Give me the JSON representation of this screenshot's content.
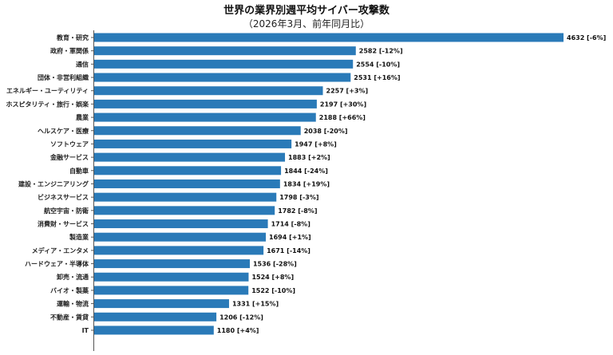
{
  "chart_data": {
    "type": "bar",
    "orientation": "horizontal",
    "title": "世界の業界別週平均サイバー攻撃数",
    "subtitle": "（2026年3月、前年同月比）",
    "categories": [
      "教育・研究",
      "政府・軍関係",
      "通信",
      "団体・非営利組織",
      "エネルギー・ユーティリティ",
      "ホスピタリティ・旅行・娯楽",
      "農業",
      "ヘルスケア・医療",
      "ソフトウェア",
      "金融サービス",
      "自動車",
      "建設・エンジニアリング",
      "ビジネスサービス",
      "航空宇宙・防衛",
      "消費財・サービス",
      "製造業",
      "メディア・エンタメ",
      "ハードウェア・半導体",
      "卸売・流通",
      "バイオ・製薬",
      "運輸・物流",
      "不動産・賃貸",
      "IT"
    ],
    "values": [
      4632,
      2582,
      2554,
      2531,
      2257,
      2197,
      2188,
      2038,
      1947,
      1883,
      1844,
      1834,
      1798,
      1782,
      1714,
      1694,
      1671,
      1536,
      1524,
      1522,
      1331,
      1206,
      1180
    ],
    "data_labels": [
      "4632 [-6%]",
      "2582 [-12%]",
      "2554 [-10%]",
      "2531 [+16%]",
      "2257 [+3%]",
      "2197 [+30%]",
      "2188 [+66%]",
      "2038 [-20%]",
      "1947 [+8%]",
      "1883 [+2%]",
      "1844 [-24%]",
      "1834 [+19%]",
      "1798 [-3%]",
      "1782 [-8%]",
      "1714 [-8%]",
      "1694 [+1%]",
      "1671 [-14%]",
      "1536 [-28%]",
      "1524 [+8%]",
      "1522 [-10%]",
      "1331 [+15%]",
      "1206 [-12%]",
      "1180 [+4%]"
    ],
    "xlim": [
      0,
      4632
    ],
    "grid": false,
    "bar_color": "#2a7ab8"
  }
}
